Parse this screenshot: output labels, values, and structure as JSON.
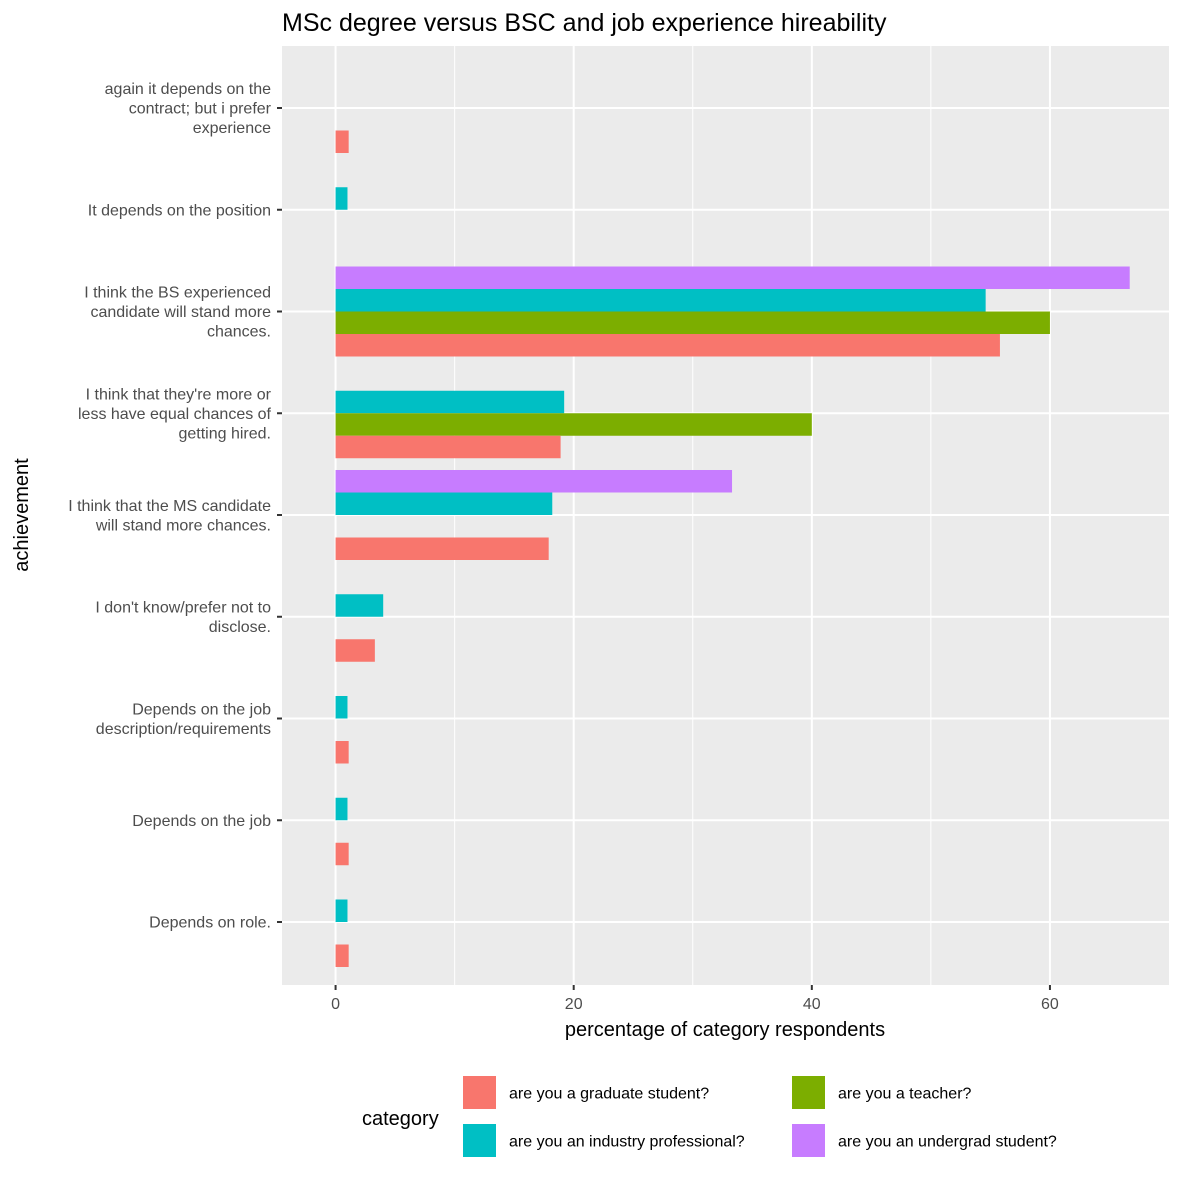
{
  "chart_data": {
    "type": "bar",
    "orientation": "horizontal",
    "title": "MSc degree versus BSC and job experience hireability",
    "xlabel": "percentage of category respondents",
    "ylabel": "achievement",
    "xlim": [
      -4.5,
      70
    ],
    "xticks": [
      0,
      20,
      40,
      60
    ],
    "grid": true,
    "legend_position": "bottom",
    "legend_title": "category",
    "categories": [
      [
        "again it depends on the",
        "contract; but i prefer",
        "experience"
      ],
      [
        "It depends on the position"
      ],
      [
        "I think the BS experienced",
        "candidate will stand more",
        "chances."
      ],
      [
        "I think that they're more or",
        "less have equal chances of",
        "getting hired."
      ],
      [
        "I think that the MS candidate",
        "will stand more chances."
      ],
      [
        "I don't know/prefer not to",
        "disclose."
      ],
      [
        "Depends on the job",
        "description/requirements"
      ],
      [
        "Depends on the job"
      ],
      [
        "Depends on role."
      ]
    ],
    "series": [
      {
        "name": "are you a graduate student?",
        "color": "#F8766D",
        "values": [
          1.1,
          null,
          55.8,
          18.9,
          17.9,
          3.3,
          1.1,
          1.1,
          1.1
        ]
      },
      {
        "name": "are you a teacher?",
        "color": "#7CAE00",
        "values": [
          null,
          null,
          60.0,
          40.0,
          null,
          null,
          null,
          null,
          null
        ]
      },
      {
        "name": "are you an industry professional?",
        "color": "#00BFC4",
        "values": [
          null,
          1.0,
          54.6,
          19.2,
          18.2,
          4.0,
          1.0,
          1.0,
          1.0
        ]
      },
      {
        "name": "are you an undergrad student?",
        "color": "#C77CFF",
        "values": [
          null,
          null,
          66.7,
          null,
          33.3,
          null,
          null,
          null,
          null
        ]
      }
    ]
  }
}
